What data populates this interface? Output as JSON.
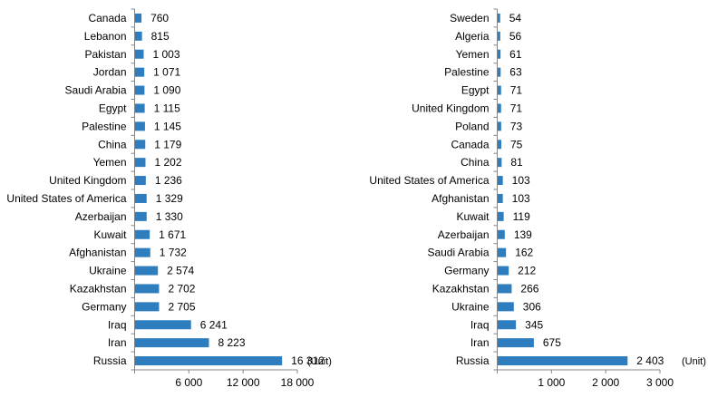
{
  "colors": {
    "bar": "#2E7EBF",
    "axis": "#868686",
    "text": "#000000"
  },
  "chart_data": [
    {
      "type": "bar",
      "orientation": "horizontal",
      "unit_label": "(Unit)",
      "xlim": [
        0,
        18000
      ],
      "ticks": [
        6000,
        12000,
        18000
      ],
      "tick_labels": [
        "6 000",
        "12 000",
        "18 000"
      ],
      "categories": [
        "Canada",
        "Lebanon",
        "Pakistan",
        "Jordan",
        "Saudi Arabia",
        "Egypt",
        "Palestine",
        "China",
        "Yemen",
        "United Kingdom",
        "United States of America",
        "Azerbaijan",
        "Kuwait",
        "Afghanistan",
        "Ukraine",
        "Kazakhstan",
        "Germany",
        "Iraq",
        "Iran",
        "Russia"
      ],
      "values": [
        760,
        815,
        1003,
        1071,
        1090,
        1115,
        1145,
        1179,
        1202,
        1236,
        1329,
        1330,
        1671,
        1732,
        2574,
        2702,
        2705,
        6241,
        8223,
        16312
      ],
      "value_labels": [
        "760",
        "815",
        "1 003",
        "1 071",
        "1 090",
        "1 115",
        "1 145",
        "1 179",
        "1 202",
        "1 236",
        "1 329",
        "1 330",
        "1 671",
        "1 732",
        "2 574",
        "2 702",
        "2 705",
        "6 241",
        "8 223",
        "16 312"
      ]
    },
    {
      "type": "bar",
      "orientation": "horizontal",
      "unit_label": "(Unit)",
      "xlim": [
        0,
        3000
      ],
      "ticks": [
        1000,
        2000,
        3000
      ],
      "tick_labels": [
        "1 000",
        "2 000",
        "3 000"
      ],
      "categories": [
        "Sweden",
        "Algeria",
        "Yemen",
        "Palestine",
        "Egypt",
        "United Kingdom",
        "Poland",
        "Canada",
        "China",
        "United States of America",
        "Afghanistan",
        "Kuwait",
        "Azerbaijan",
        "Saudi Arabia",
        "Germany",
        "Kazakhstan",
        "Ukraine",
        "Iraq",
        "Iran",
        "Russia"
      ],
      "values": [
        54,
        56,
        61,
        63,
        71,
        71,
        73,
        75,
        81,
        103,
        103,
        119,
        139,
        162,
        212,
        266,
        306,
        345,
        675,
        2403
      ],
      "value_labels": [
        "54",
        "56",
        "61",
        "63",
        "71",
        "71",
        "73",
        "75",
        "81",
        "103",
        "103",
        "119",
        "139",
        "162",
        "212",
        "266",
        "306",
        "345",
        "675",
        "2 403"
      ]
    }
  ]
}
